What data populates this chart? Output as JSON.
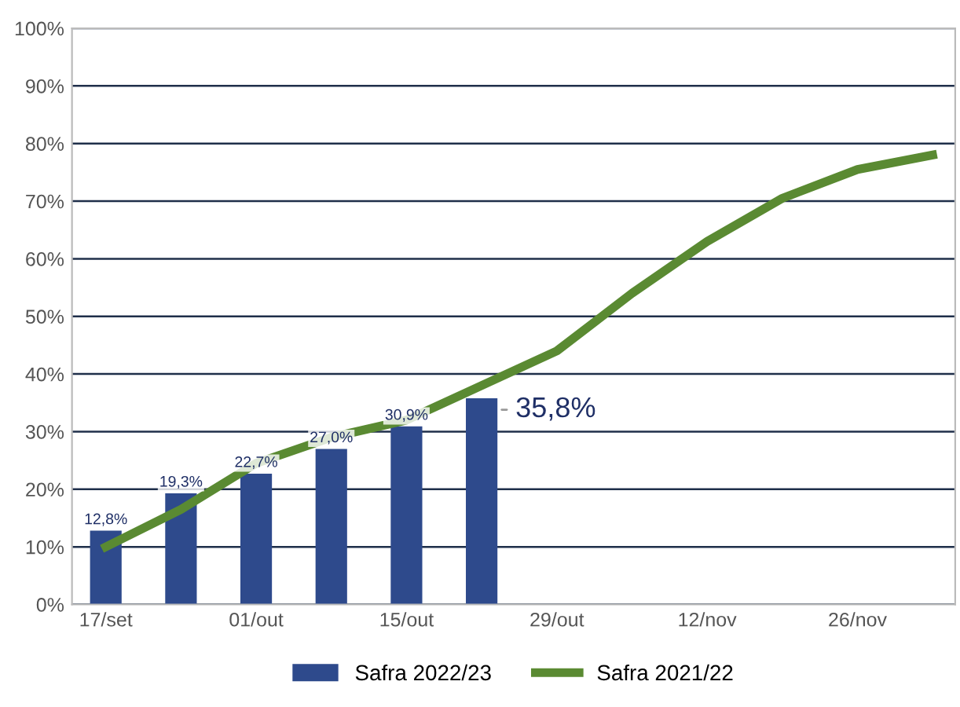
{
  "chart_data": {
    "type": "bar",
    "categories": [
      "17/set",
      null,
      "01/out",
      null,
      "15/out",
      null,
      "29/out",
      null,
      "12/nov",
      null,
      "26/nov",
      null
    ],
    "series": [
      {
        "name": "Safra 2022/23",
        "color": "#2e4a8c",
        "values": [
          12.8,
          19.3,
          22.7,
          27.0,
          30.9,
          35.8,
          null,
          null,
          null,
          null,
          null,
          null
        ],
        "value_labels": [
          "12,8%",
          "19,3%",
          "22,7%",
          "27,0%",
          "30,9%",
          "35,8%",
          null,
          null,
          null,
          null,
          null,
          null
        ]
      },
      {
        "name": "Safra 2021/22",
        "type": "line",
        "color": "#5a8a32",
        "values": [
          10,
          16.5,
          24.5,
          29,
          32,
          38,
          44,
          54,
          63,
          70.5,
          75.5,
          78
        ]
      }
    ],
    "ylim": [
      0,
      100
    ],
    "yticks": [
      {
        "value": 0,
        "label": "0%"
      },
      {
        "value": 10,
        "label": "10%"
      },
      {
        "value": 20,
        "label": "20%"
      },
      {
        "value": 30,
        "label": "30%"
      },
      {
        "value": 40,
        "label": "40%"
      },
      {
        "value": 50,
        "label": "50%"
      },
      {
        "value": 60,
        "label": "60%"
      },
      {
        "value": 70,
        "label": "70%"
      },
      {
        "value": 80,
        "label": "80%"
      },
      {
        "value": 90,
        "label": "90%"
      },
      {
        "value": 100,
        "label": "100%"
      }
    ],
    "grid": "y",
    "legend": "bottom",
    "marker": "none",
    "line_style": "solid"
  }
}
